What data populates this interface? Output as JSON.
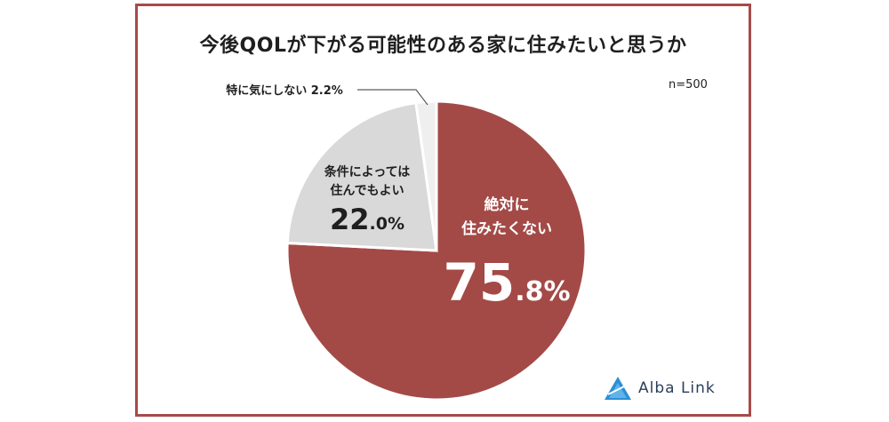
{
  "title": "今後QOLが下がる可能性のある家に住みたいと思うか",
  "sample_size": "n=500",
  "brand": {
    "name": "Alba Link",
    "logo_icon": "alba-link-triangle-logo",
    "accent": "#2a8fd6",
    "text_color": "#2c3e5c"
  },
  "chart_data": {
    "type": "pie",
    "slices": [
      {
        "label_lines": [
          "絶対に",
          "住みたくない"
        ],
        "value": 75.8,
        "value_int": "75",
        "value_dec": ".8%",
        "color": "#a34a47"
      },
      {
        "label_lines": [
          "条件によっては",
          "住んでもよい"
        ],
        "value": 22.0,
        "value_int": "22",
        "value_dec": ".0%",
        "color": "#d9d9d9"
      },
      {
        "label_lines": [
          "特に気にしない 2.2%"
        ],
        "value": 2.2,
        "value_int": "",
        "value_dec": "",
        "color": "#efefef"
      }
    ],
    "start": "12 o'clock",
    "direction": "clockwise",
    "legend": "none"
  }
}
